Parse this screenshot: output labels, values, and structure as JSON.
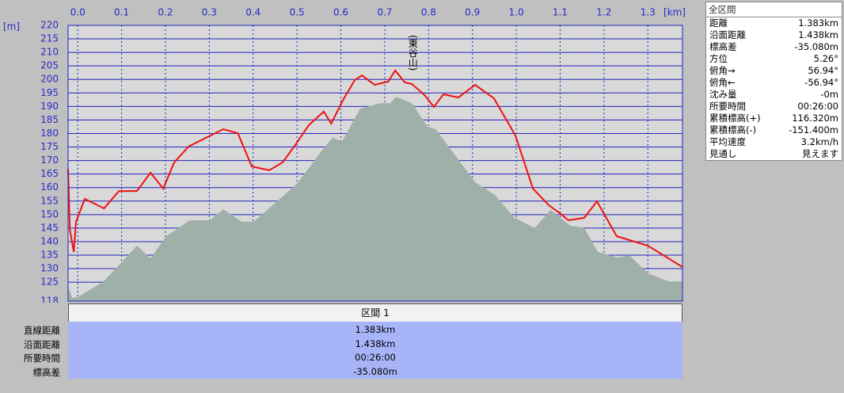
{
  "chart_data": {
    "type": "line",
    "x_label": "[km]",
    "y_label": "[m]",
    "annotation": {
      "text": "(東谷山)",
      "x": 0.763
    },
    "xlim": [
      -0.022,
      1.379
    ],
    "ylim": [
      118,
      220
    ],
    "xticks": [
      {
        "value": 0,
        "label": "0.0"
      },
      0.1,
      0.2,
      0.3,
      0.4,
      0.5,
      0.6,
      0.7,
      0.8,
      0.9,
      {
        "value": 1,
        "label": "1.0"
      },
      1.1,
      1.2,
      1.3
    ],
    "yticks": [
      118,
      125,
      130,
      135,
      140,
      145,
      150,
      155,
      160,
      165,
      170,
      175,
      180,
      185,
      190,
      195,
      200,
      205,
      210,
      215,
      220
    ],
    "grid": true,
    "series": [
      {
        "color": "#9fb0a8",
        "fill": true,
        "x": [
          -0.022,
          -0.013,
          0.0,
          0.058,
          0.094,
          0.135,
          0.166,
          0.202,
          0.256,
          0.301,
          0.332,
          0.374,
          0.401,
          0.446,
          0.5,
          0.554,
          0.581,
          0.603,
          0.644,
          0.69,
          0.713,
          0.726,
          0.762,
          0.798,
          0.816,
          0.866,
          0.906,
          0.951,
          0.996,
          1.042,
          1.078,
          1.123,
          1.155,
          1.186,
          1.231,
          1.258,
          1.3,
          1.348,
          1.379
        ],
        "values": [
          123.3,
          119.2,
          119.5,
          125.1,
          131.3,
          138.5,
          133.8,
          142.0,
          147.9,
          147.9,
          152.0,
          147.3,
          147.3,
          153.7,
          161.4,
          173.1,
          178.4,
          177.2,
          189.2,
          191.2,
          191.2,
          193.6,
          191.2,
          182.5,
          181.6,
          170.8,
          162.0,
          157.3,
          148.8,
          145.0,
          151.7,
          145.9,
          145.0,
          136.2,
          134.1,
          135.0,
          128.3,
          125.3,
          125.3
        ]
      },
      {
        "color": "#ee1111",
        "fill": false,
        "x": [
          -0.022,
          -0.018,
          -0.009,
          -0.004,
          0.016,
          0.06,
          0.094,
          0.135,
          0.166,
          0.195,
          0.22,
          0.253,
          0.332,
          0.365,
          0.397,
          0.437,
          0.467,
          0.495,
          0.527,
          0.561,
          0.578,
          0.606,
          0.632,
          0.648,
          0.677,
          0.708,
          0.724,
          0.746,
          0.762,
          0.791,
          0.812,
          0.834,
          0.868,
          0.906,
          0.949,
          0.998,
          1.038,
          1.074,
          1.097,
          1.119,
          1.155,
          1.184,
          1.229,
          1.3,
          1.379
        ],
        "values": [
          166.9,
          144.4,
          136.2,
          147.3,
          155.8,
          152.3,
          158.7,
          158.7,
          165.5,
          159.6,
          169.3,
          175.2,
          181.6,
          180.1,
          167.8,
          166.4,
          169.3,
          175.5,
          183.1,
          188.1,
          183.7,
          192.7,
          199.8,
          201.5,
          198.0,
          199.2,
          203.3,
          198.9,
          198.3,
          194.2,
          189.8,
          194.5,
          193.3,
          198.0,
          193.0,
          179.3,
          159.6,
          153.5,
          150.8,
          147.9,
          148.8,
          154.9,
          142.0,
          138.5,
          130.6
        ]
      }
    ]
  },
  "summary": {
    "title": "全区間",
    "rows": [
      [
        "距離",
        "1.383km"
      ],
      [
        "沿面距離",
        "1.438km"
      ],
      [
        "標高差",
        "-35.080m"
      ],
      [
        "方位",
        "5.26°"
      ],
      [
        "俯角→",
        "56.94°"
      ],
      [
        "俯角←",
        "-56.94°"
      ],
      [
        "沈み量",
        "-0m"
      ],
      [
        "所要時間",
        "00:26:00"
      ],
      [
        "累積標高(+)",
        "116.320m"
      ],
      [
        "累積標高(-)",
        "-151.400m"
      ],
      [
        "平均速度",
        "3.2km/h"
      ],
      [
        "見通し",
        "見えます"
      ]
    ]
  },
  "section": {
    "title": "区間 1",
    "rows": [
      [
        "直線距離",
        "1.383km"
      ],
      [
        "沿面距離",
        "1.438km"
      ],
      [
        "所要時間",
        "00:26:00"
      ],
      [
        "標高差",
        "-35.080m"
      ]
    ]
  }
}
